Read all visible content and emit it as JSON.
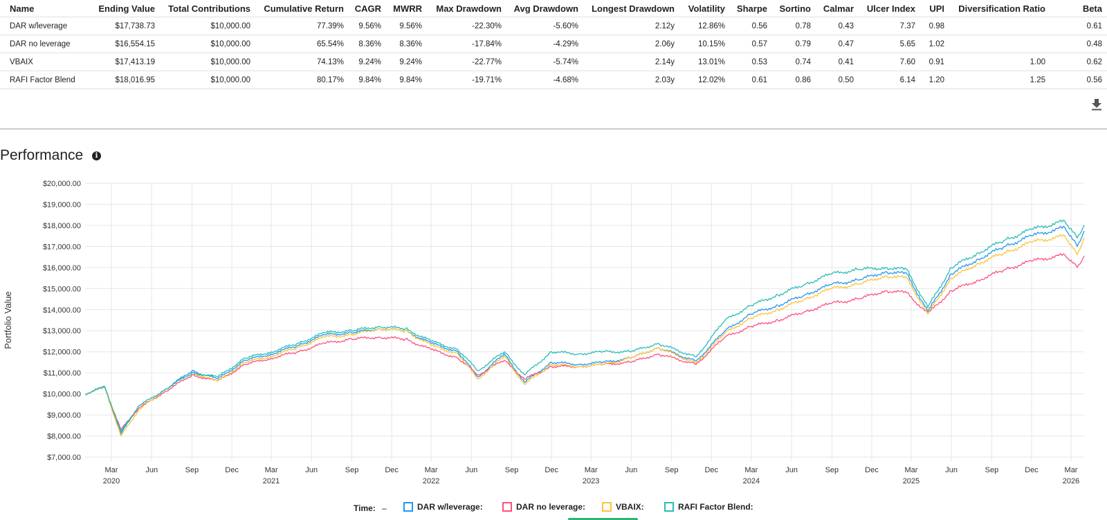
{
  "table": {
    "columns": [
      "Name",
      "Ending Value",
      "Total Contributions",
      "Cumulative Return",
      "CAGR",
      "MWRR",
      "Max Drawdown",
      "Avg Drawdown",
      "Longest Drawdown",
      "Volatility",
      "Sharpe",
      "Sortino",
      "Calmar",
      "Ulcer Index",
      "UPI",
      "Diversification Ratio",
      "Beta"
    ],
    "rows": [
      [
        "DAR w/leverage",
        "$17,738.73",
        "$10,000.00",
        "77.39%",
        "9.56%",
        "9.56%",
        "-22.30%",
        "-5.60%",
        "2.12y",
        "12.86%",
        "0.56",
        "0.78",
        "0.43",
        "7.37",
        "0.98",
        "",
        "0.61"
      ],
      [
        "DAR no leverage",
        "$16,554.15",
        "$10,000.00",
        "65.54%",
        "8.36%",
        "8.36%",
        "-17.84%",
        "-4.29%",
        "2.06y",
        "10.15%",
        "0.57",
        "0.79",
        "0.47",
        "5.65",
        "1.02",
        "",
        "0.48"
      ],
      [
        "VBAIX",
        "$17,413.19",
        "$10,000.00",
        "74.13%",
        "9.24%",
        "9.24%",
        "-22.77%",
        "-5.74%",
        "2.14y",
        "13.01%",
        "0.53",
        "0.74",
        "0.41",
        "7.60",
        "0.91",
        "1.00",
        "0.62"
      ],
      [
        "RAFI Factor Blend",
        "$18,016.95",
        "$10,000.00",
        "80.17%",
        "9.84%",
        "9.84%",
        "-19.71%",
        "-4.68%",
        "2.03y",
        "12.02%",
        "0.61",
        "0.86",
        "0.50",
        "6.14",
        "1.20",
        "1.25",
        "0.56"
      ]
    ]
  },
  "download_icon": "download-icon",
  "performance": {
    "title": "Performance",
    "info_icon": "info-icon"
  },
  "legend": {
    "time_label": "Time:",
    "time_value": "–"
  },
  "chart_data": {
    "type": "line",
    "ylabel": "Portfolio Value",
    "xlabel": "",
    "ylim": [
      7000,
      20000
    ],
    "y_ticks": [
      "$7,000.00",
      "$8,000.00",
      "$9,000.00",
      "$10,000.00",
      "$11,000.00",
      "$12,000.00",
      "$13,000.00",
      "$14,000.00",
      "$15,000.00",
      "$16,000.00",
      "$17,000.00",
      "$18,000.00",
      "$19,000.00",
      "$20,000.00"
    ],
    "x_range": [
      "2020-01-01",
      "2026-03-31"
    ],
    "x_ticks": [
      {
        "date": "2020-03-01",
        "label": "Mar",
        "year": "2020"
      },
      {
        "date": "2020-06-01",
        "label": "Jun",
        "year": ""
      },
      {
        "date": "2020-09-01",
        "label": "Sep",
        "year": ""
      },
      {
        "date": "2020-12-01",
        "label": "Dec",
        "year": ""
      },
      {
        "date": "2021-03-01",
        "label": "Mar",
        "year": "2021"
      },
      {
        "date": "2021-06-01",
        "label": "Jun",
        "year": ""
      },
      {
        "date": "2021-09-01",
        "label": "Sep",
        "year": ""
      },
      {
        "date": "2021-12-01",
        "label": "Dec",
        "year": ""
      },
      {
        "date": "2022-03-01",
        "label": "Mar",
        "year": "2022"
      },
      {
        "date": "2022-06-01",
        "label": "Jun",
        "year": ""
      },
      {
        "date": "2022-09-01",
        "label": "Sep",
        "year": ""
      },
      {
        "date": "2022-12-01",
        "label": "Dec",
        "year": ""
      },
      {
        "date": "2023-03-01",
        "label": "Mar",
        "year": "2023"
      },
      {
        "date": "2023-06-01",
        "label": "Jun",
        "year": ""
      },
      {
        "date": "2023-09-01",
        "label": "Sep",
        "year": ""
      },
      {
        "date": "2023-12-01",
        "label": "Dec",
        "year": ""
      },
      {
        "date": "2024-03-01",
        "label": "Mar",
        "year": "2024"
      },
      {
        "date": "2024-06-01",
        "label": "Jun",
        "year": ""
      },
      {
        "date": "2024-09-01",
        "label": "Sep",
        "year": ""
      },
      {
        "date": "2024-12-01",
        "label": "Dec",
        "year": ""
      },
      {
        "date": "2025-03-01",
        "label": "Mar",
        "year": "2025"
      },
      {
        "date": "2025-06-01",
        "label": "Jun",
        "year": ""
      },
      {
        "date": "2025-09-01",
        "label": "Sep",
        "year": ""
      },
      {
        "date": "2025-12-01",
        "label": "Dec",
        "year": ""
      },
      {
        "date": "2026-03-01",
        "label": "Mar",
        "year": "2026"
      }
    ],
    "grid": true,
    "x": [
      "2020-01-01",
      "2020-02-15",
      "2020-03-23",
      "2020-05-01",
      "2020-07-01",
      "2020-09-01",
      "2020-10-30",
      "2021-01-01",
      "2021-03-01",
      "2021-05-01",
      "2021-07-01",
      "2021-09-01",
      "2021-11-01",
      "2022-01-01",
      "2022-03-01",
      "2022-05-01",
      "2022-06-16",
      "2022-08-15",
      "2022-09-30",
      "2022-12-01",
      "2023-02-01",
      "2023-04-01",
      "2023-06-01",
      "2023-08-01",
      "2023-10-27",
      "2024-01-01",
      "2024-03-01",
      "2024-05-01",
      "2024-07-01",
      "2024-09-01",
      "2024-11-01",
      "2025-01-01",
      "2025-02-19",
      "2025-04-08",
      "2025-06-01",
      "2025-08-01",
      "2025-10-01",
      "2025-12-01",
      "2026-02-15",
      "2026-03-15",
      "2026-03-31"
    ],
    "series": [
      {
        "name": "DAR w/leverage:",
        "color": "#2196f3",
        "values": [
          10000,
          10350,
          8100,
          9400,
          10200,
          11100,
          10700,
          11600,
          11900,
          12300,
          12800,
          12900,
          13100,
          13000,
          12400,
          12000,
          10800,
          11900,
          10550,
          11500,
          11400,
          11500,
          11700,
          12200,
          11550,
          13000,
          13800,
          14200,
          14700,
          15200,
          15400,
          15800,
          15700,
          13900,
          15700,
          16400,
          17000,
          17500,
          17900,
          17000,
          17739
        ]
      },
      {
        "name": "DAR no leverage:",
        "color": "#ff4f7b",
        "values": [
          10000,
          10300,
          8300,
          9300,
          10100,
          10900,
          10600,
          11400,
          11700,
          12000,
          12400,
          12600,
          12700,
          12600,
          12100,
          11700,
          10900,
          11600,
          10700,
          11300,
          11300,
          11400,
          11500,
          11900,
          11400,
          12700,
          13200,
          13500,
          13900,
          14300,
          14500,
          14900,
          14800,
          13800,
          14900,
          15400,
          15900,
          16300,
          16600,
          16000,
          16554
        ]
      },
      {
        "name": "VBAIX:",
        "color": "#ffc233",
        "values": [
          10000,
          10300,
          8000,
          9200,
          10200,
          11000,
          10600,
          11500,
          11800,
          12200,
          12700,
          12800,
          13100,
          13000,
          12300,
          11900,
          10700,
          11800,
          10450,
          11400,
          11300,
          11400,
          11700,
          12200,
          11450,
          12900,
          13600,
          14000,
          14500,
          15000,
          15200,
          15600,
          15500,
          13800,
          15500,
          16200,
          16700,
          17200,
          17500,
          16600,
          17413
        ]
      },
      {
        "name": "RAFI Factor Blend:",
        "color": "#26bcb8",
        "values": [
          10000,
          10330,
          8200,
          9400,
          10200,
          11000,
          10800,
          11700,
          12000,
          12400,
          12900,
          13000,
          13200,
          13100,
          12500,
          12100,
          11100,
          12000,
          10900,
          12000,
          11900,
          12000,
          12000,
          12400,
          11750,
          13500,
          14200,
          14700,
          15200,
          15700,
          15900,
          16000,
          15900,
          14100,
          16000,
          16700,
          17300,
          17800,
          18200,
          17400,
          18017
        ]
      }
    ]
  }
}
